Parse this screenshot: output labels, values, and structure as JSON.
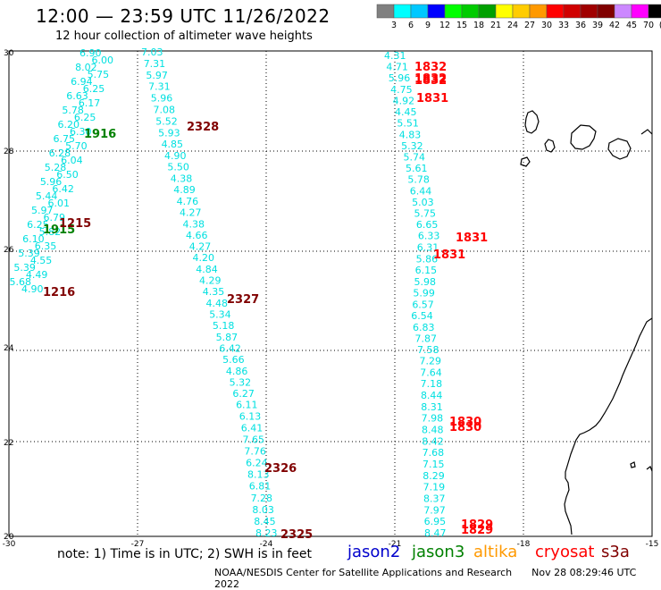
{
  "title": "12:00 — 23:59 UTC 11/26/2022",
  "subtitle": "12 hour collection of altimeter wave heights",
  "legend": {
    "labels": [
      "3",
      "6",
      "9",
      "12",
      "15",
      "18",
      "21",
      "24",
      "27",
      "30",
      "33",
      "36",
      "39",
      "42",
      "45",
      "70",
      "(ft)"
    ],
    "colors": [
      "#808080",
      "#00ffff",
      "#00c8ff",
      "#0000ff",
      "#00ff00",
      "#00cc00",
      "#00a000",
      "#ffff00",
      "#ffcc00",
      "#ff9900",
      "#ff0000",
      "#d00000",
      "#a00000",
      "#800000",
      "#cc88ff",
      "#ff00ff",
      "#000000"
    ]
  },
  "axes": {
    "lat_labels": [
      "30",
      "28",
      "26",
      "24",
      "22",
      "20"
    ],
    "lon_labels": [
      "-30",
      "-27",
      "-24",
      "-21",
      "-18",
      "-15"
    ]
  },
  "track_color": "#00e0e0",
  "time_colors": {
    "jason3": "#008000",
    "sentinel": "#800000",
    "cryosat": "#ff0000"
  },
  "tracks": [
    {
      "name": "track-1",
      "values": [
        "6.90",
        "6.00",
        "8.02",
        "5.75",
        "6.94",
        "6.25",
        "6.63",
        "6.17",
        "5.78",
        "6.25",
        "6.20",
        "6.30",
        "6.75",
        "5.70",
        "6.28",
        "6.04",
        "5.28",
        "6.50",
        "5.96",
        "6.42",
        "5.44",
        "6.01",
        "5.97",
        "6.79",
        "6.25",
        "5.82",
        "6.10",
        "6.35",
        "5.39",
        "4.55",
        "5.39",
        "4.49",
        "5.68",
        "4.90"
      ]
    },
    {
      "name": "track-2",
      "values": [
        "7.03",
        "7.31",
        "5.97",
        "7.31",
        "5.96",
        "7.08",
        "5.52",
        "5.93",
        "4.85",
        "4.90",
        "5.50",
        "4.38",
        "4.89",
        "4.76",
        "4.27",
        "4.38",
        "4.66",
        "4.27",
        "4.20",
        "4.84",
        "4.29",
        "4.35",
        "4.48",
        "5.34",
        "5.18",
        "5.87",
        "6.42",
        "5.66",
        "4.86",
        "5.32",
        "6.27",
        "6.11",
        "6.13",
        "6.41",
        "7.65",
        "7.76",
        "6.24",
        "8.13",
        "6.81",
        "7.28",
        "8.03",
        "8.45",
        "8.23"
      ]
    },
    {
      "name": "track-3",
      "values": [
        "4.31",
        "4.71",
        "5.96",
        "4.75",
        "4.92",
        "4.45",
        "5.51",
        "4.83",
        "5.32",
        "5.74",
        "5.61",
        "5.78",
        "6.44",
        "5.03",
        "5.75",
        "6.65",
        "6.33",
        "6.31",
        "5.86",
        "6.15",
        "5.98",
        "5.99",
        "6.57",
        "6.54",
        "6.83",
        "7.87",
        "7.58",
        "7.29",
        "7.64",
        "7.18",
        "8.44",
        "8.31",
        "7.98",
        "8.48",
        "8.42",
        "7.68",
        "7.15",
        "8.29",
        "7.19",
        "8.37",
        "7.97",
        "6.95",
        "8.47"
      ]
    }
  ],
  "time_labels": [
    {
      "text": "1916",
      "sat": "jason3"
    },
    {
      "text": "1915",
      "sat": "jason3"
    },
    {
      "text": "1215",
      "sat": "sentinel"
    },
    {
      "text": "1216",
      "sat": "sentinel"
    },
    {
      "text": "2328",
      "sat": "sentinel"
    },
    {
      "text": "2327",
      "sat": "sentinel"
    },
    {
      "text": "2326",
      "sat": "sentinel"
    },
    {
      "text": "2325",
      "sat": "sentinel"
    },
    {
      "text": "1832",
      "sat": "cryosat"
    },
    {
      "text": "1832",
      "sat": "cryosat"
    },
    {
      "text": "1832",
      "sat": "cryosat"
    },
    {
      "text": "1831",
      "sat": "cryosat"
    },
    {
      "text": "1831",
      "sat": "cryosat"
    },
    {
      "text": "1831",
      "sat": "cryosat"
    },
    {
      "text": "1830",
      "sat": "cryosat"
    },
    {
      "text": "1830",
      "sat": "cryosat"
    },
    {
      "text": "1829",
      "sat": "cryosat"
    },
    {
      "text": "1829",
      "sat": "cryosat"
    }
  ],
  "note": "note: 1) Time is in UTC; 2) SWH is in feet",
  "satellites": [
    {
      "name": "jason2",
      "color": "#0000cc"
    },
    {
      "name": "jason3",
      "color": "#008000"
    },
    {
      "name": "altika",
      "color": "#ff9900"
    },
    {
      "name": "cryosat",
      "color": "#ff0000"
    },
    {
      "name": "s3a",
      "color": "#800000"
    }
  ],
  "credit": "NOAA/NESDIS Center for Satellite Applications and Research",
  "timestamp": "Nov 28 08:29:46 UTC 2022"
}
